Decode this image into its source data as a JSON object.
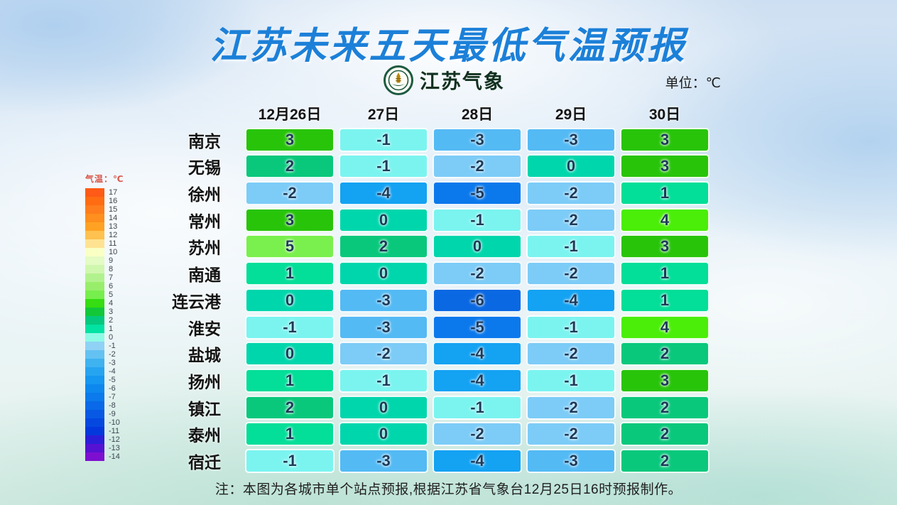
{
  "title": "江苏未来五天最低气温预报",
  "logo": {
    "text": "江苏气象"
  },
  "unit_label": "单位：℃",
  "note": "注：本图为各城市单个站点预报,根据江苏省气象台12月25日16时预报制作。",
  "legend": {
    "title": "气温：℃",
    "entries": [
      {
        "value": "17",
        "color": "#ff5a17"
      },
      {
        "value": "16",
        "color": "#ff6c12"
      },
      {
        "value": "15",
        "color": "#ff7d1c"
      },
      {
        "value": "14",
        "color": "#ff8f1e"
      },
      {
        "value": "13",
        "color": "#ffa224"
      },
      {
        "value": "12",
        "color": "#ffc14f"
      },
      {
        "value": "11",
        "color": "#ffe392"
      },
      {
        "value": "10",
        "color": "#faffc4"
      },
      {
        "value": "9",
        "color": "#e4fbc4"
      },
      {
        "value": "8",
        "color": "#d0f7ae"
      },
      {
        "value": "7",
        "color": "#b2f28e"
      },
      {
        "value": "6",
        "color": "#98ee6b"
      },
      {
        "value": "5",
        "color": "#76ee4d"
      },
      {
        "value": "4",
        "color": "#35dd12"
      },
      {
        "value": "3",
        "color": "#12c838"
      },
      {
        "value": "2",
        "color": "#04c87e"
      },
      {
        "value": "1",
        "color": "#02e2a2"
      },
      {
        "value": "0",
        "color": "#8ffae6"
      },
      {
        "value": "-1",
        "color": "#8fd2f5"
      },
      {
        "value": "-2",
        "color": "#64c2f2"
      },
      {
        "value": "-3",
        "color": "#3fb2f0"
      },
      {
        "value": "-4",
        "color": "#27a4f0"
      },
      {
        "value": "-5",
        "color": "#1697f0"
      },
      {
        "value": "-6",
        "color": "#0d88ee"
      },
      {
        "value": "-7",
        "color": "#0b7aec"
      },
      {
        "value": "-8",
        "color": "#0969e8"
      },
      {
        "value": "-9",
        "color": "#0759e4"
      },
      {
        "value": "-10",
        "color": "#0448e0"
      },
      {
        "value": "-11",
        "color": "#0338dc"
      },
      {
        "value": "-12",
        "color": "#2b1ed8"
      },
      {
        "value": "-13",
        "color": "#5512d2"
      },
      {
        "value": "-14",
        "color": "#7d0fd0"
      }
    ]
  },
  "colors": {
    "title_blue": "#1c80d8",
    "cell_text": "#1d3a5a",
    "cell_by_value": {
      "5": "#79f04d",
      "4": "#4aee08",
      "3": "#28c40a",
      "2": "#09c87c",
      "1": "#03de98",
      "0": "#00d6ac",
      "-1": "#7bf4f0",
      "-2": "#7cccf7",
      "-3": "#54baf4",
      "-4": "#14a2f2",
      "-5": "#0b79ec",
      "-6": "#0a68e2"
    }
  },
  "table": {
    "date_headers": [
      "12月26日",
      "27日",
      "28日",
      "29日",
      "30日"
    ],
    "rows": [
      {
        "city": "南京",
        "values": [
          3,
          -1,
          -3,
          -3,
          3
        ]
      },
      {
        "city": "无锡",
        "values": [
          2,
          -1,
          -2,
          0,
          3
        ]
      },
      {
        "city": "徐州",
        "values": [
          -2,
          -4,
          -5,
          -2,
          1
        ]
      },
      {
        "city": "常州",
        "values": [
          3,
          0,
          -1,
          -2,
          4
        ]
      },
      {
        "city": "苏州",
        "values": [
          5,
          2,
          0,
          -1,
          3
        ]
      },
      {
        "city": "南通",
        "values": [
          1,
          0,
          -2,
          -2,
          1
        ]
      },
      {
        "city": "连云港",
        "values": [
          0,
          -3,
          -6,
          -4,
          1
        ]
      },
      {
        "city": "淮安",
        "values": [
          -1,
          -3,
          -5,
          -1,
          4
        ]
      },
      {
        "city": "盐城",
        "values": [
          0,
          -2,
          -4,
          -2,
          2
        ]
      },
      {
        "city": "扬州",
        "values": [
          1,
          -1,
          -4,
          -1,
          3
        ]
      },
      {
        "city": "镇江",
        "values": [
          2,
          0,
          -1,
          -2,
          2
        ]
      },
      {
        "city": "泰州",
        "values": [
          1,
          0,
          -2,
          -2,
          2
        ]
      },
      {
        "city": "宿迁",
        "values": [
          -1,
          -3,
          -4,
          -3,
          2
        ]
      }
    ]
  },
  "chart_data": {
    "type": "heatmap",
    "title": "江苏未来五天最低气温预报",
    "unit": "℃",
    "columns": [
      "12月26日",
      "27日",
      "28日",
      "29日",
      "30日"
    ],
    "rows": [
      "南京",
      "无锡",
      "徐州",
      "常州",
      "苏州",
      "南通",
      "连云港",
      "淮安",
      "盐城",
      "扬州",
      "镇江",
      "泰州",
      "宿迁"
    ],
    "values": [
      [
        3,
        -1,
        -3,
        -3,
        3
      ],
      [
        2,
        -1,
        -2,
        0,
        3
      ],
      [
        -2,
        -4,
        -5,
        -2,
        1
      ],
      [
        3,
        0,
        -1,
        -2,
        4
      ],
      [
        5,
        2,
        0,
        -1,
        3
      ],
      [
        1,
        0,
        -2,
        -2,
        1
      ],
      [
        0,
        -3,
        -6,
        -4,
        1
      ],
      [
        -1,
        -3,
        -5,
        -1,
        4
      ],
      [
        0,
        -2,
        -4,
        -2,
        2
      ],
      [
        1,
        -1,
        -4,
        -1,
        3
      ],
      [
        2,
        0,
        -1,
        -2,
        2
      ],
      [
        1,
        0,
        -2,
        -2,
        2
      ],
      [
        -1,
        -3,
        -4,
        -3,
        2
      ]
    ],
    "colorbar_label": "气温：℃",
    "colorbar_range": [
      -14,
      17
    ],
    "legend_position": "left",
    "footnote": "注：本图为各城市单个站点预报,根据江苏省气象台12月25日16时预报制作。"
  }
}
